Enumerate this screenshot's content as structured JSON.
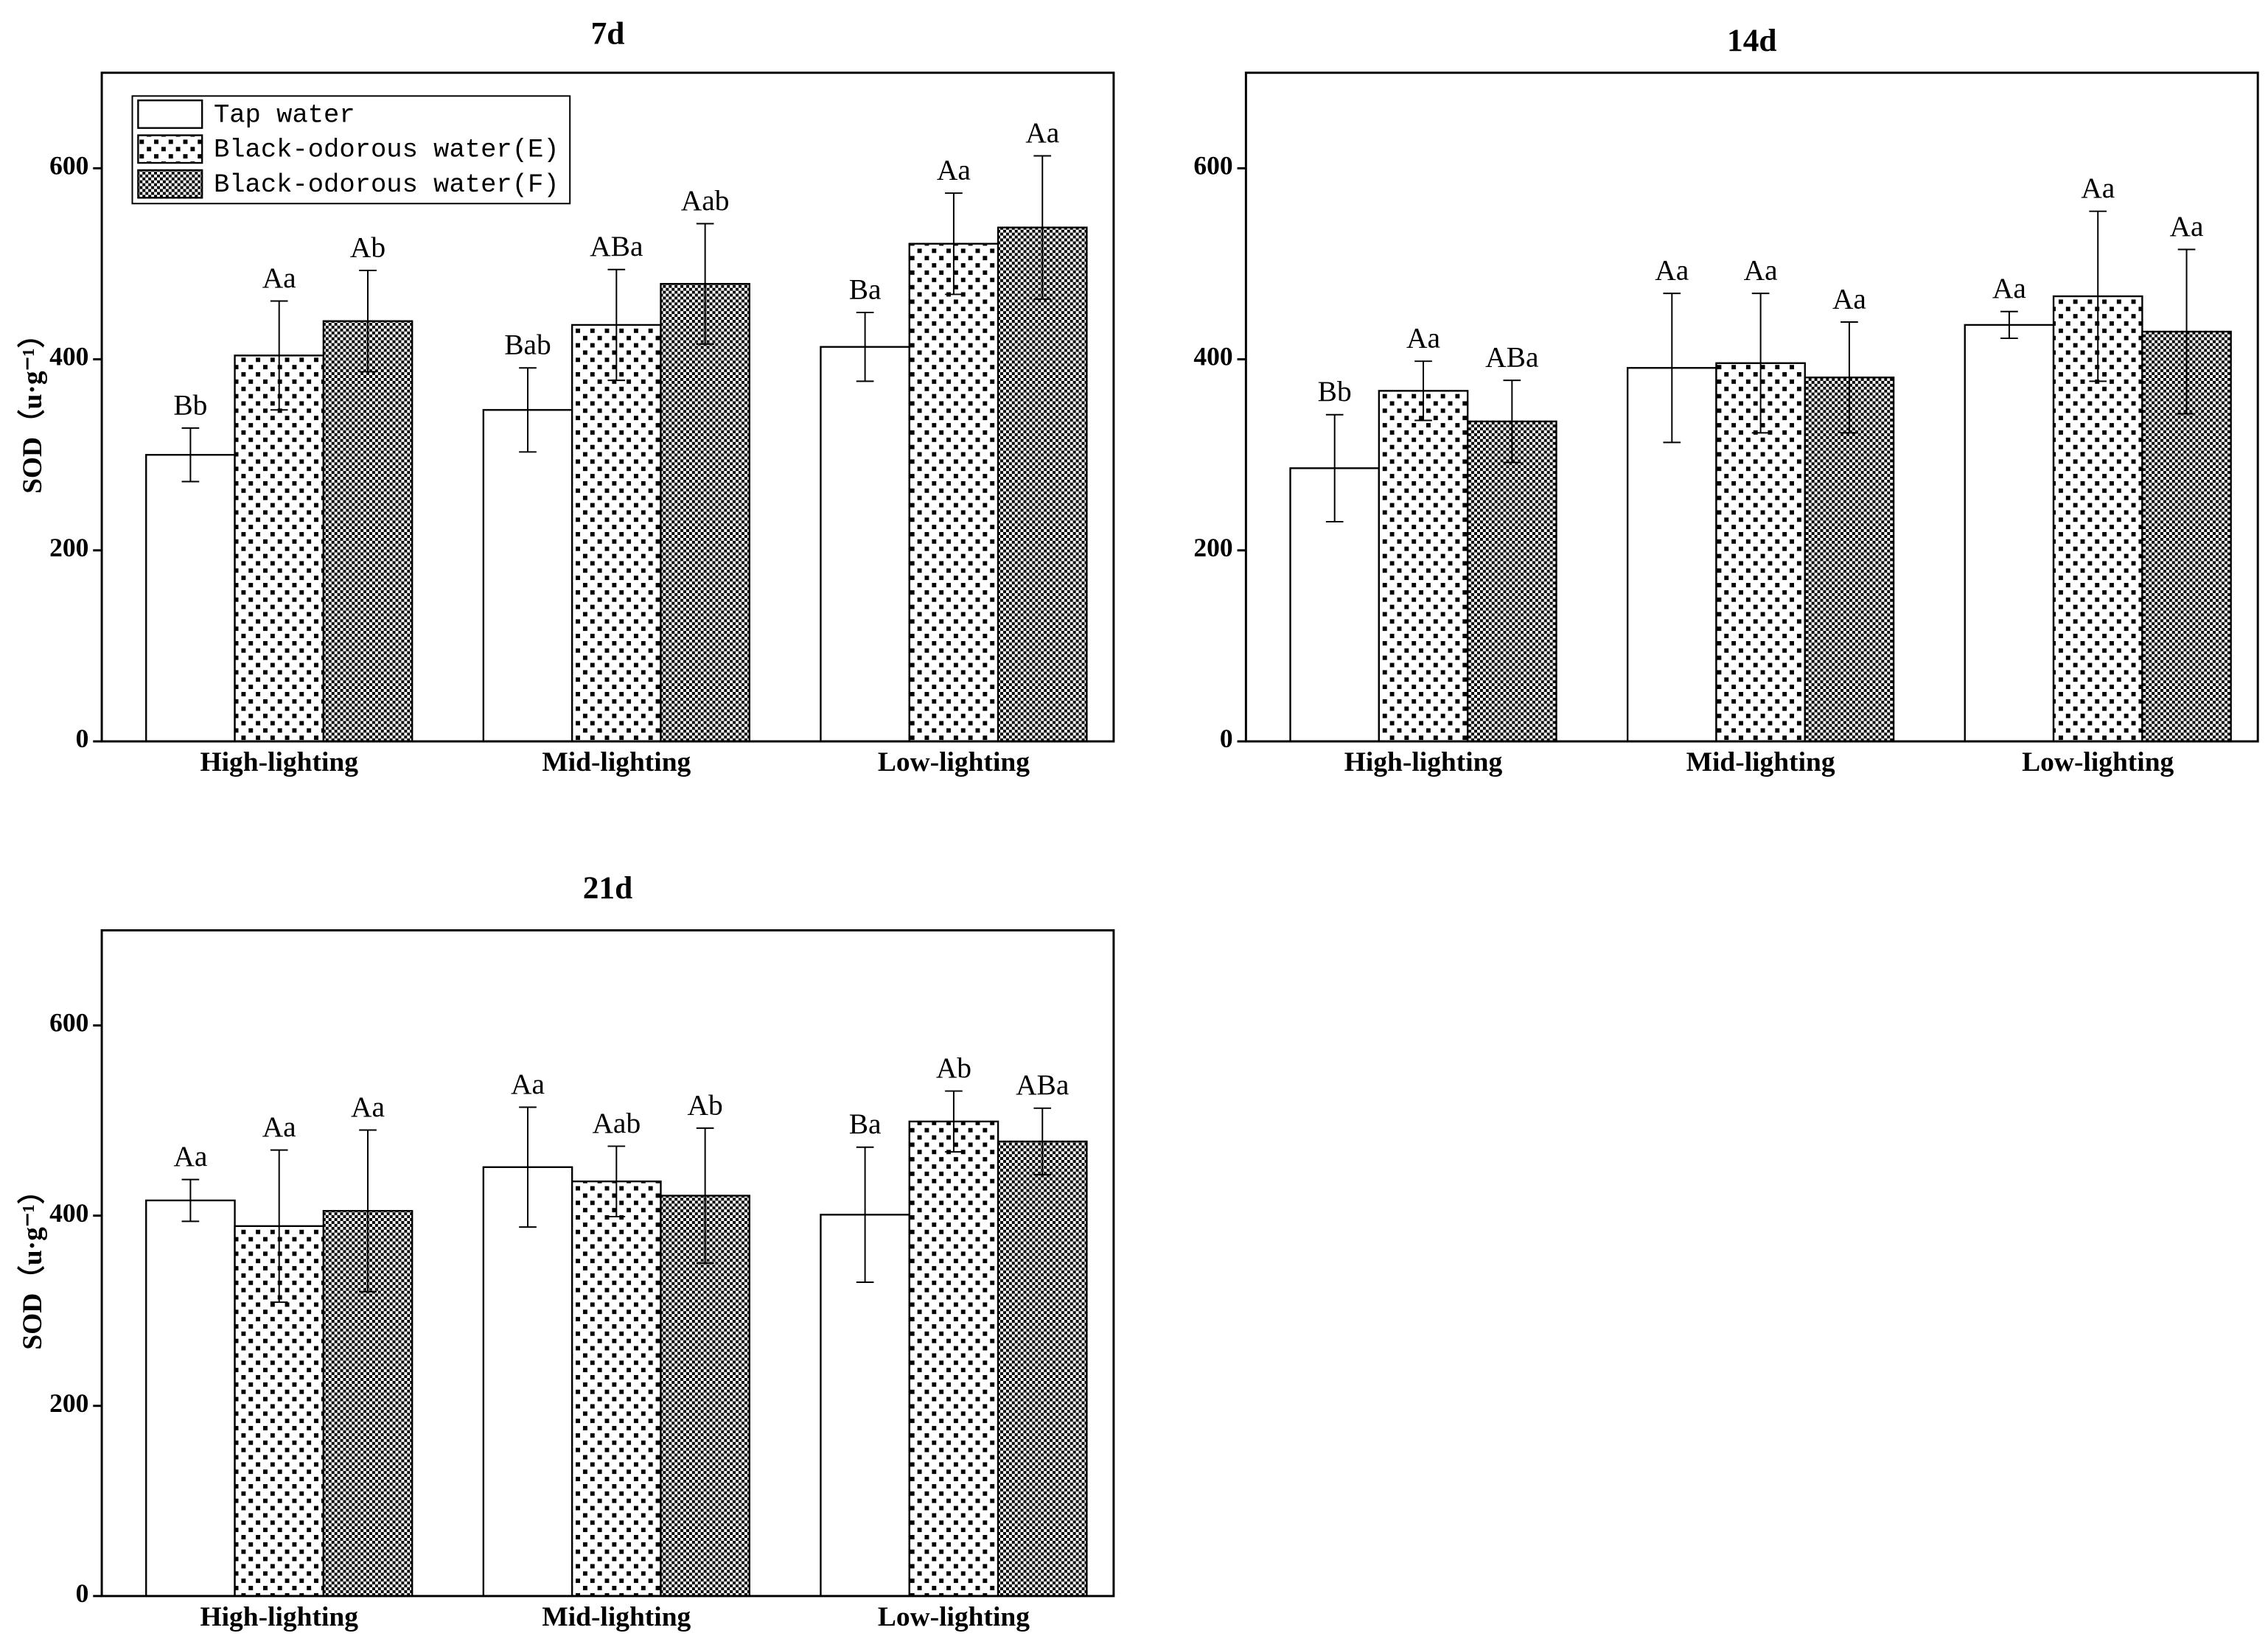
{
  "chart_data": [
    {
      "type": "bar",
      "title": "7d",
      "ylabel": "SOD（u·g⁻¹）",
      "categories": [
        "High-lighting",
        "Mid-lighting",
        "Low-lighting"
      ],
      "ylim": [
        0,
        700
      ],
      "yticks": [
        0,
        200,
        400,
        600
      ],
      "legend": "upper left",
      "series": [
        {
          "name": "Tap water",
          "color": "#ffffff",
          "pattern": "none",
          "values": [
            300,
            347,
            413
          ],
          "errors": [
            28,
            44,
            36
          ],
          "labels": [
            "Bb",
            "Bab",
            "Ba"
          ]
        },
        {
          "name": "Black-odorous water(E)",
          "color": "#ffffff",
          "pattern": "dots",
          "values": [
            404,
            436,
            521
          ],
          "errors": [
            57,
            58,
            53
          ],
          "labels": [
            "Aa",
            "ABa",
            "Aa"
          ]
        },
        {
          "name": "Black-odorous water(F)",
          "color": "#000000",
          "pattern": "checker",
          "values": [
            440,
            479,
            538
          ],
          "errors": [
            53,
            63,
            75
          ],
          "labels": [
            "Ab",
            "Aab",
            "Aa"
          ]
        }
      ]
    },
    {
      "type": "bar",
      "title": "14d",
      "categories": [
        "High-lighting",
        "Mid-lighting",
        "Low-lighting"
      ],
      "ylim": [
        0,
        700
      ],
      "yticks": [
        0,
        200,
        400,
        600
      ],
      "series": [
        {
          "color": "#ffffff",
          "pattern": "none",
          "values": [
            286,
            391,
            436
          ],
          "errors": [
            56,
            78,
            14
          ],
          "labels": [
            "Bb",
            "Aa",
            "Aa"
          ]
        },
        {
          "color": "#ffffff",
          "pattern": "dots",
          "values": [
            367,
            396,
            466
          ],
          "errors": [
            31,
            73,
            89
          ],
          "labels": [
            "Aa",
            "Aa",
            "Aa"
          ]
        },
        {
          "color": "#000000",
          "pattern": "checker",
          "values": [
            335,
            381,
            429
          ],
          "errors": [
            43,
            58,
            86
          ],
          "labels": [
            "ABa",
            "Aa",
            "Aa"
          ]
        }
      ]
    },
    {
      "type": "bar",
      "title": "21d",
      "ylabel": "SOD（u·g⁻¹）",
      "categories": [
        "High-lighting",
        "Mid-lighting",
        "Low-lighting"
      ],
      "ylim": [
        0,
        700
      ],
      "yticks": [
        0,
        200,
        400,
        600
      ],
      "series": [
        {
          "color": "#ffffff",
          "pattern": "none",
          "values": [
            416,
            451,
            401
          ],
          "errors": [
            22,
            63,
            71
          ],
          "labels": [
            "Aa",
            "Aa",
            "Ba"
          ]
        },
        {
          "color": "#ffffff",
          "pattern": "dots",
          "values": [
            389,
            436,
            499
          ],
          "errors": [
            80,
            37,
            32
          ],
          "labels": [
            "Aa",
            "Aab",
            "Ab"
          ]
        },
        {
          "color": "#000000",
          "pattern": "checker",
          "values": [
            405,
            421,
            478
          ],
          "errors": [
            85,
            71,
            35
          ],
          "labels": [
            "Aa",
            "Ab",
            "ABa"
          ]
        }
      ]
    }
  ]
}
